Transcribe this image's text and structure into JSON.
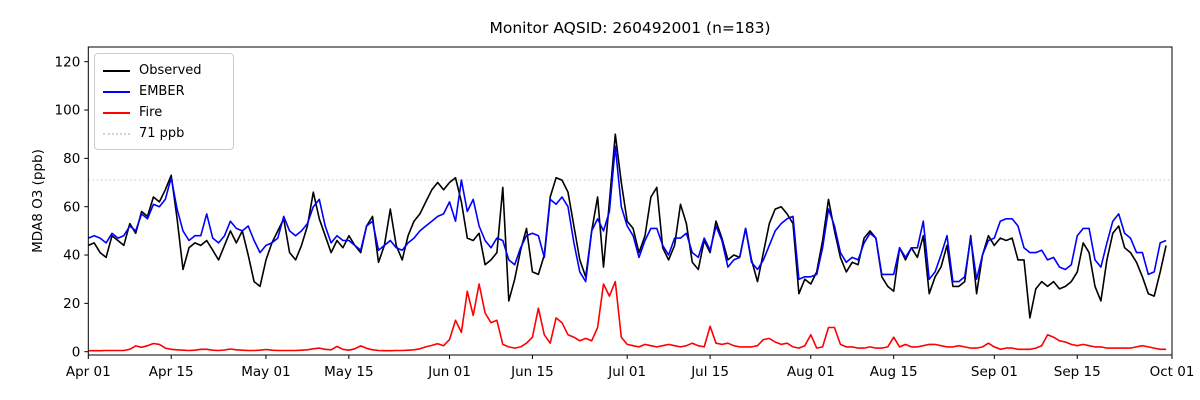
{
  "title": "Monitor AQSID: 260492001 (n=183)",
  "ylabel": "MDA8 O3 (ppb)",
  "legend": {
    "items": [
      {
        "label": "Observed",
        "color": "#000000",
        "style": "solid"
      },
      {
        "label": "EMBER",
        "color": "#0000ff",
        "style": "solid"
      },
      {
        "label": "Fire",
        "color": "#ff0000",
        "style": "solid"
      },
      {
        "label": "71 ppb",
        "color": "#d3d3d3",
        "style": "dotted"
      }
    ]
  },
  "chart_data": {
    "type": "line",
    "title": "Monitor AQSID: 260492001 (n=183)",
    "xlabel": "",
    "ylabel": "MDA8 O3 (ppb)",
    "n_points": 183,
    "x_unit": "daily values, day 0 = Apr 01, day 182 = Sep 30",
    "x_total_days": 183,
    "ylim": [
      -1.4,
      126
    ],
    "grid": false,
    "legend_position": "upper left",
    "ref_line": {
      "value": 71,
      "label": "71 ppb",
      "color": "#d3d3d3",
      "style": "dotted"
    },
    "y_ticks": [
      0,
      20,
      40,
      60,
      80,
      100,
      120
    ],
    "x_ticks": [
      {
        "d": 0,
        "label": "Apr 01"
      },
      {
        "d": 14,
        "label": "Apr 15"
      },
      {
        "d": 30,
        "label": "May 01"
      },
      {
        "d": 44,
        "label": "May 15"
      },
      {
        "d": 61,
        "label": "Jun 01"
      },
      {
        "d": 75,
        "label": "Jun 15"
      },
      {
        "d": 91,
        "label": "Jul 01"
      },
      {
        "d": 105,
        "label": "Jul 15"
      },
      {
        "d": 122,
        "label": "Aug 01"
      },
      {
        "d": 136,
        "label": "Aug 15"
      },
      {
        "d": 153,
        "label": "Sep 01"
      },
      {
        "d": 167,
        "label": "Sep 15"
      },
      {
        "d": 183,
        "label": "Oct 01"
      }
    ],
    "series": [
      {
        "name": "Observed",
        "color": "#000000",
        "values": [
          44,
          45,
          41,
          39,
          48,
          46,
          44,
          53,
          49,
          58,
          56,
          64,
          62,
          67,
          73,
          55,
          34,
          43,
          45,
          44,
          46,
          42,
          38,
          44,
          50,
          45,
          50,
          40,
          29,
          27,
          38,
          45,
          50,
          55,
          41,
          38,
          44,
          52,
          66,
          55,
          48,
          41,
          46,
          43,
          48,
          44,
          41,
          52,
          56,
          37,
          44,
          59,
          44,
          38,
          48,
          54,
          57,
          62,
          67,
          70,
          67,
          70,
          72,
          62,
          47,
          46,
          49,
          36,
          38,
          41,
          68,
          21,
          30,
          42,
          51,
          33,
          32,
          40,
          64,
          72,
          71,
          66,
          52,
          38,
          31,
          50,
          64,
          35,
          62,
          90,
          70,
          54,
          51,
          41,
          48,
          64,
          68,
          43,
          38,
          44,
          61,
          53,
          37,
          34,
          46,
          41,
          54,
          47,
          38,
          40,
          39,
          51,
          38,
          29,
          41,
          53,
          59,
          60,
          57,
          53,
          24,
          30,
          28,
          33,
          46,
          63,
          50,
          39,
          33,
          37,
          36,
          47,
          50,
          47,
          31,
          27,
          25,
          43,
          38,
          43,
          39,
          48,
          24,
          31,
          35,
          44,
          27,
          27,
          29,
          48,
          24,
          40,
          48,
          44,
          47,
          46,
          47,
          38,
          38,
          14,
          26,
          29,
          27,
          29,
          26,
          27,
          29,
          33,
          45,
          41,
          27,
          21,
          38,
          49,
          52,
          43,
          41,
          37,
          31,
          24,
          23,
          33,
          44
        ]
      },
      {
        "name": "EMBER",
        "color": "#0000ff",
        "values": [
          47,
          48,
          47,
          45,
          49,
          47,
          48,
          52,
          50,
          57,
          55,
          61,
          60,
          63,
          72,
          59,
          50,
          46,
          48,
          48,
          57,
          47,
          45,
          48,
          54,
          51,
          50,
          52,
          46,
          41,
          44,
          45,
          47,
          56,
          50,
          48,
          50,
          53,
          60,
          63,
          52,
          45,
          48,
          46,
          46,
          44,
          42,
          52,
          54,
          42,
          44,
          46,
          43,
          42,
          45,
          47,
          50,
          52,
          54,
          56,
          57,
          62,
          54,
          71,
          58,
          63,
          52,
          46,
          43,
          47,
          46,
          38,
          36,
          43,
          48,
          49,
          48,
          39,
          63,
          61,
          64,
          60,
          45,
          33,
          29,
          50,
          55,
          50,
          58,
          85,
          60,
          52,
          48,
          39,
          46,
          51,
          51,
          44,
          40,
          47,
          47,
          49,
          41,
          39,
          47,
          42,
          52,
          46,
          35,
          38,
          39,
          51,
          37,
          34,
          38,
          44,
          50,
          53,
          55,
          56,
          30,
          31,
          31,
          32,
          43,
          59,
          52,
          41,
          37,
          39,
          38,
          45,
          49,
          47,
          32,
          32,
          32,
          43,
          39,
          43,
          43,
          54,
          30,
          33,
          40,
          48,
          29,
          29,
          31,
          47,
          30,
          40,
          46,
          47,
          54,
          55,
          55,
          52,
          43,
          41,
          41,
          42,
          38,
          39,
          35,
          34,
          36,
          48,
          51,
          51,
          38,
          35,
          45,
          54,
          57,
          49,
          47,
          41,
          41,
          32,
          33,
          45,
          46
        ]
      },
      {
        "name": "Fire",
        "color": "#ff0000",
        "values": [
          0.4,
          0.4,
          0.4,
          0.5,
          0.5,
          0.5,
          0.5,
          1.0,
          2.4,
          1.8,
          2.5,
          3.4,
          3.0,
          1.5,
          1.0,
          0.8,
          0.6,
          0.5,
          0.6,
          1.0,
          1.0,
          0.6,
          0.5,
          0.7,
          1.1,
          0.8,
          0.6,
          0.5,
          0.5,
          0.6,
          0.9,
          0.6,
          0.5,
          0.5,
          0.5,
          0.5,
          0.6,
          0.8,
          1.2,
          1.5,
          1.0,
          0.8,
          2.2,
          1.0,
          0.6,
          1.2,
          2.4,
          1.4,
          0.8,
          0.5,
          0.4,
          0.4,
          0.5,
          0.5,
          0.6,
          0.8,
          1.2,
          2.0,
          2.6,
          3.3,
          2.5,
          5,
          13,
          8,
          25,
          15,
          28,
          16,
          12,
          13,
          3,
          2,
          1.5,
          2,
          3.5,
          6,
          18,
          7,
          3.5,
          14,
          12,
          7,
          6,
          4.5,
          5.5,
          4.5,
          10,
          28,
          23,
          29,
          6,
          3,
          2.5,
          2,
          3,
          2.5,
          2,
          2.5,
          3,
          2.5,
          2,
          2.5,
          3.5,
          2.5,
          2,
          10.5,
          3.5,
          3,
          3.5,
          2.5,
          2,
          2,
          2,
          2.5,
          5,
          5.5,
          4,
          3,
          3.5,
          2,
          1.5,
          2.5,
          7,
          1.5,
          2,
          10,
          10,
          3,
          2,
          2,
          1.5,
          1.5,
          2,
          1.5,
          1.5,
          2,
          6,
          2,
          3,
          2,
          2,
          2.5,
          3,
          3,
          2.5,
          2,
          2,
          2.5,
          2,
          1.5,
          1.5,
          2,
          3.5,
          2,
          1,
          1.5,
          1.5,
          1,
          1,
          1,
          1.5,
          2.5,
          7,
          6,
          4.5,
          4,
          3,
          2.5,
          3,
          2.5,
          2,
          2,
          1.5,
          1.5,
          1.5,
          1.5,
          1.5,
          2,
          2.5,
          2,
          1.5,
          1,
          1
        ]
      }
    ]
  }
}
